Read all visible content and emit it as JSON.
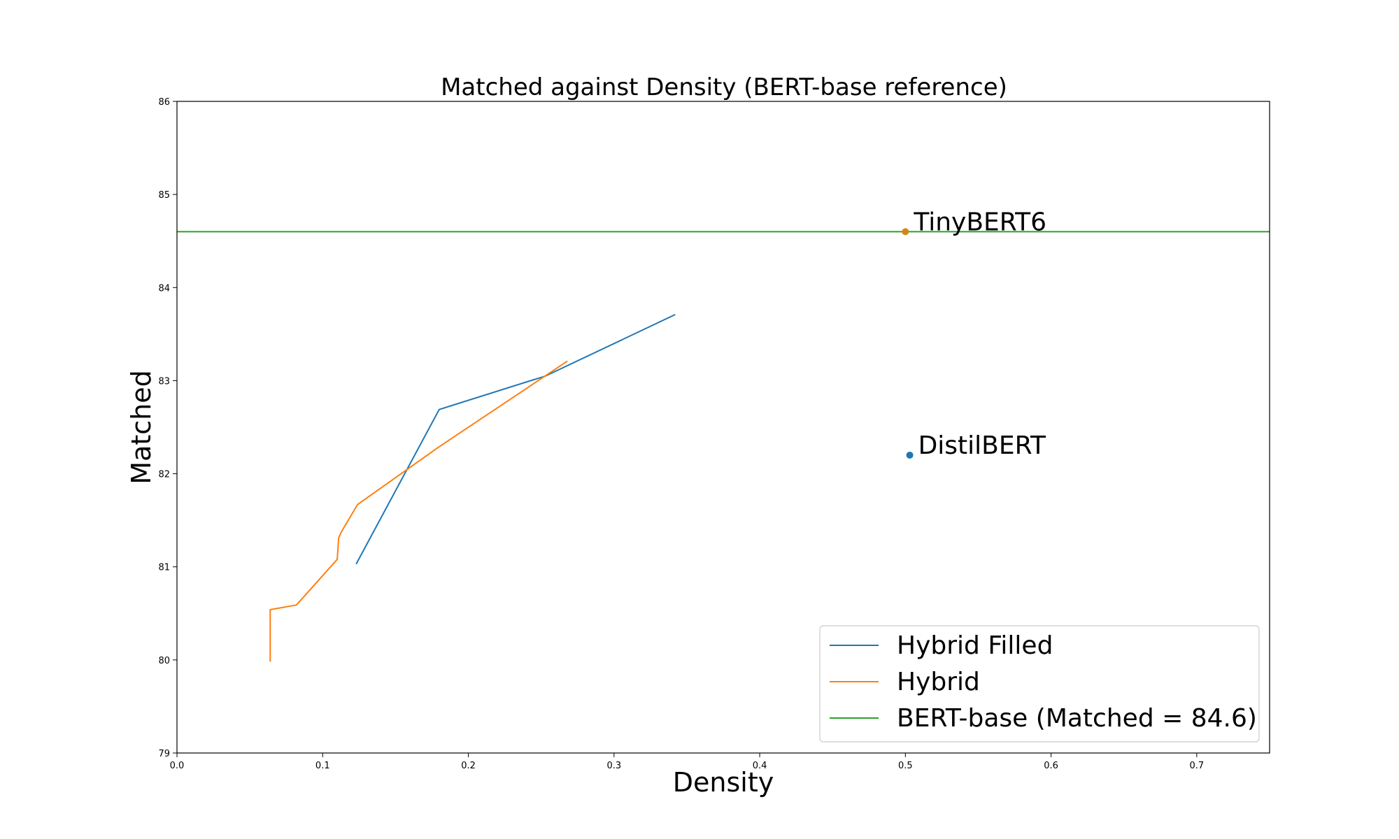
{
  "chart_data": {
    "type": "line",
    "title": "Matched against Density (BERT-base reference)",
    "xlabel": "Density",
    "ylabel": "Matched",
    "xlim": [
      0.0,
      0.75
    ],
    "ylim": [
      79,
      86
    ],
    "xticks": [
      "0.0",
      "0.1",
      "0.2",
      "0.3",
      "0.4",
      "0.5",
      "0.6",
      "0.7"
    ],
    "xtick_values": [
      0.0,
      0.1,
      0.2,
      0.3,
      0.4,
      0.5,
      0.6,
      0.7
    ],
    "yticks": [
      "79",
      "80",
      "81",
      "82",
      "83",
      "84",
      "85",
      "86"
    ],
    "ytick_values": [
      79,
      80,
      81,
      82,
      83,
      84,
      85,
      86
    ],
    "grid": false,
    "legend_position": "bottom-right",
    "series": [
      {
        "name": "Hybrid Filled",
        "color": "#1f77b4",
        "x": [
          0.123,
          0.18,
          0.253,
          0.342
        ],
        "y": [
          81.03,
          82.69,
          83.05,
          83.71
        ]
      },
      {
        "name": "Hybrid",
        "color": "#ff7f0e",
        "x": [
          0.064,
          0.064,
          0.082,
          0.11,
          0.111,
          0.113,
          0.124,
          0.18,
          0.268
        ],
        "y": [
          79.98,
          80.54,
          80.59,
          81.08,
          81.31,
          81.38,
          81.67,
          82.29,
          83.21
        ]
      }
    ],
    "reference_line": {
      "name": "BERT-base (Matched = 84.6)",
      "color": "#2ca02c",
      "y": 84.6
    },
    "annotated_points": [
      {
        "label": "TinyBERT6",
        "x": 0.5,
        "y": 84.6,
        "color": "#d4861a"
      },
      {
        "label": "DistilBERT",
        "x": 0.503,
        "y": 82.2,
        "color": "#1f77b4"
      }
    ]
  }
}
